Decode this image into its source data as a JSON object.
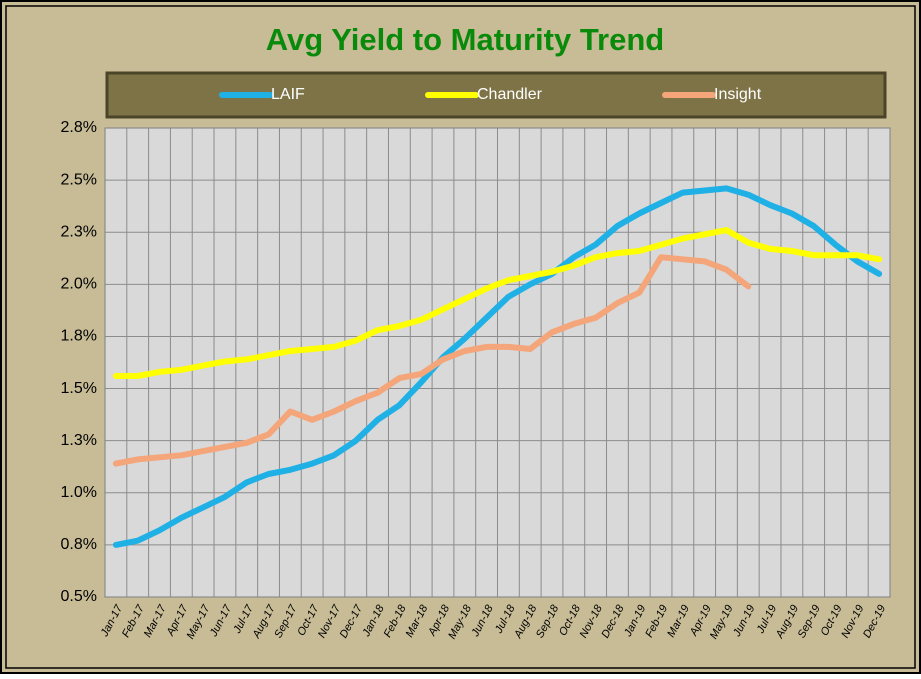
{
  "chart_data": {
    "type": "line",
    "title": "Avg Yield to Maturity Trend",
    "categories": [
      "Jan-17",
      "Feb-17",
      "Mar-17",
      "Apr-17",
      "May-17",
      "Jun-17",
      "Jul-17",
      "Aug-17",
      "Sep-17",
      "Oct-17",
      "Nov-17",
      "Dec-17",
      "Jan-18",
      "Feb-18",
      "Mar-18",
      "Apr-18",
      "May-18",
      "Jun-18",
      "Jul-18",
      "Aug-18",
      "Sep-18",
      "Oct-18",
      "Nov-18",
      "Dec-18",
      "Jan-19",
      "Feb-19",
      "Mar-19",
      "Apr-19",
      "May-19",
      "Jun-19",
      "Jul-19",
      "Aug-19",
      "Sep-19",
      "Oct-19",
      "Nov-19",
      "Dec-19"
    ],
    "series": [
      {
        "name": "LAIF",
        "color": "#1fb0e6",
        "values": [
          0.75,
          0.77,
          0.82,
          0.88,
          0.93,
          0.98,
          1.05,
          1.09,
          1.11,
          1.14,
          1.18,
          1.25,
          1.35,
          1.42,
          1.53,
          1.65,
          1.74,
          1.84,
          1.94,
          2.0,
          2.05,
          2.13,
          2.19,
          2.28,
          2.34,
          2.39,
          2.44,
          2.45,
          2.46,
          2.43,
          2.38,
          2.34,
          2.28,
          2.19,
          2.11,
          2.05
        ]
      },
      {
        "name": "Chandler",
        "color": "#ffff00",
        "values": [
          1.56,
          1.56,
          1.58,
          1.59,
          1.61,
          1.63,
          1.64,
          1.66,
          1.68,
          1.69,
          1.7,
          1.73,
          1.78,
          1.8,
          1.83,
          1.88,
          1.93,
          1.98,
          2.02,
          2.04,
          2.06,
          2.09,
          2.13,
          2.15,
          2.16,
          2.19,
          2.22,
          2.24,
          2.26,
          2.2,
          2.17,
          2.16,
          2.14,
          2.14,
          2.14,
          2.12
        ]
      },
      {
        "name": "Insight",
        "color": "#f4a57a",
        "values": [
          1.14,
          1.16,
          1.17,
          1.18,
          1.2,
          1.22,
          1.24,
          1.28,
          1.39,
          1.35,
          1.39,
          1.44,
          1.48,
          1.55,
          1.57,
          1.64,
          1.68,
          1.7,
          1.7,
          1.69,
          1.77,
          1.81,
          1.84,
          1.91,
          1.96,
          2.13,
          2.12,
          2.11,
          2.07,
          1.99,
          null,
          null,
          null,
          null,
          null,
          null
        ]
      }
    ],
    "ylim": [
      0.5,
      2.75
    ],
    "yticks": [
      {
        "value": 0.5,
        "label": "0.5%"
      },
      {
        "value": 0.75,
        "label": "0.8%"
      },
      {
        "value": 1.0,
        "label": "1.0%"
      },
      {
        "value": 1.25,
        "label": "1.3%"
      },
      {
        "value": 1.5,
        "label": "1.5%"
      },
      {
        "value": 1.75,
        "label": "1.8%"
      },
      {
        "value": 2.0,
        "label": "2.0%"
      },
      {
        "value": 2.25,
        "label": "2.3%"
      },
      {
        "value": 2.5,
        "label": "2.5%"
      },
      {
        "value": 2.75,
        "label": "2.8%"
      }
    ],
    "grid": true
  }
}
